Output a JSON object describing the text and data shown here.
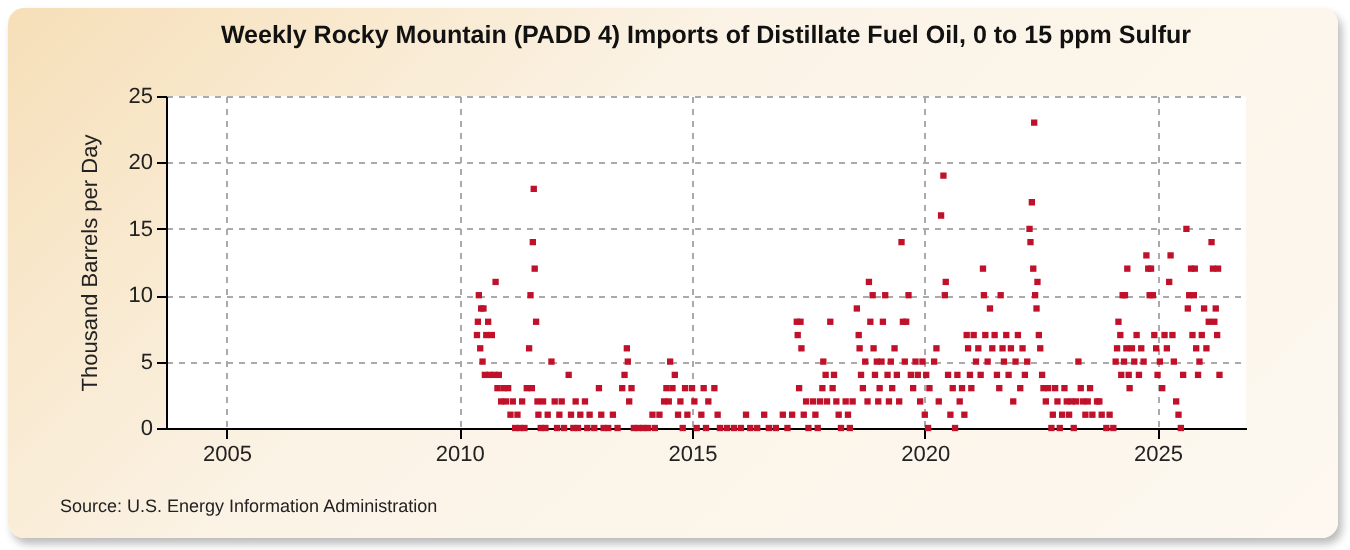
{
  "chart_data": {
    "type": "scatter",
    "title": "Weekly Rocky Mountain (PADD 4) Imports of Distillate Fuel Oil, 0 to 15 ppm Sulfur",
    "ylabel": "Thousand Barrels per Day",
    "annotations": [
      "Source: U.S. Energy Information Administration"
    ],
    "xlim": [
      2003.7,
      2026.9
    ],
    "xticks": [
      2005,
      2010,
      2015,
      2020,
      2025
    ],
    "ylim": [
      0,
      25
    ],
    "yticks": [
      0,
      5,
      10,
      15,
      20,
      25
    ],
    "grid": true,
    "marker": "square",
    "legend": false,
    "series": [
      {
        "color": "#c0102a",
        "x": [
          2010.38,
          2010.4,
          2010.42,
          2010.45,
          2010.47,
          2010.5,
          2010.52,
          2010.55,
          2010.58,
          2010.62,
          2010.65,
          2010.7,
          2010.75,
          2010.78,
          2010.82,
          2010.85,
          2010.9,
          2010.95,
          2011.0,
          2011.05,
          2011.1,
          2011.15,
          2011.2,
          2011.25,
          2011.3,
          2011.35,
          2011.4,
          2011.45,
          2011.5,
          2011.53,
          2011.56,
          2011.58,
          2011.6,
          2011.62,
          2011.65,
          2011.68,
          2011.7,
          2011.75,
          2011.8,
          2011.85,
          2011.9,
          2011.98,
          2012.05,
          2012.1,
          2012.15,
          2012.2,
          2012.25,
          2012.35,
          2012.4,
          2012.45,
          2012.5,
          2012.55,
          2012.6,
          2012.7,
          2012.75,
          2012.8,
          2012.9,
          2013.0,
          2013.05,
          2013.1,
          2013.2,
          2013.3,
          2013.4,
          2013.5,
          2013.55,
          2013.6,
          2013.62,
          2013.65,
          2013.7,
          2013.75,
          2013.85,
          2013.95,
          2014.05,
          2014.15,
          2014.2,
          2014.3,
          2014.4,
          2014.45,
          2014.5,
          2014.53,
          2014.58,
          2014.63,
          2014.7,
          2014.75,
          2014.8,
          2014.85,
          2014.9,
          2015.0,
          2015.05,
          2015.1,
          2015.2,
          2015.25,
          2015.3,
          2015.35,
          2015.48,
          2015.55,
          2015.6,
          2015.75,
          2015.9,
          2016.05,
          2016.16,
          2016.25,
          2016.4,
          2016.55,
          2016.65,
          2016.8,
          2016.95,
          2017.05,
          2017.15,
          2017.25,
          2017.27,
          2017.3,
          2017.33,
          2017.35,
          2017.4,
          2017.45,
          2017.5,
          2017.6,
          2017.65,
          2017.7,
          2017.75,
          2017.8,
          2017.82,
          2017.87,
          2017.9,
          2017.97,
          2018.02,
          2018.05,
          2018.1,
          2018.15,
          2018.2,
          2018.3,
          2018.35,
          2018.39,
          2018.45,
          2018.54,
          2018.58,
          2018.6,
          2018.63,
          2018.67,
          2018.72,
          2018.77,
          2018.8,
          2018.83,
          2018.88,
          2018.9,
          2018.93,
          2018.97,
          2019.0,
          2019.03,
          2019.07,
          2019.1,
          2019.15,
          2019.2,
          2019.23,
          2019.27,
          2019.3,
          2019.35,
          2019.4,
          2019.45,
          2019.5,
          2019.53,
          2019.57,
          2019.6,
          2019.65,
          2019.7,
          2019.75,
          2019.8,
          2019.85,
          2019.9,
          2019.95,
          2020.0,
          2020.03,
          2020.07,
          2020.1,
          2020.2,
          2020.25,
          2020.3,
          2020.35,
          2020.4,
          2020.43,
          2020.45,
          2020.5,
          2020.55,
          2020.6,
          2020.65,
          2020.7,
          2020.75,
          2020.8,
          2020.85,
          2020.9,
          2020.93,
          2020.97,
          2021.0,
          2021.05,
          2021.1,
          2021.15,
          2021.2,
          2021.25,
          2021.27,
          2021.3,
          2021.35,
          2021.4,
          2021.45,
          2021.5,
          2021.55,
          2021.6,
          2021.63,
          2021.67,
          2021.7,
          2021.75,
          2021.8,
          2021.85,
          2021.9,
          2021.95,
          2022.0,
          2022.05,
          2022.1,
          2022.15,
          2022.2,
          2022.25,
          2022.27,
          2022.3,
          2022.33,
          2022.35,
          2022.37,
          2022.4,
          2022.42,
          2022.45,
          2022.48,
          2022.52,
          2022.55,
          2022.6,
          2022.65,
          2022.72,
          2022.75,
          2022.8,
          2022.85,
          2022.9,
          2022.95,
          2023.0,
          2023.05,
          2023.1,
          2023.15,
          2023.2,
          2023.25,
          2023.3,
          2023.35,
          2023.4,
          2023.45,
          2023.5,
          2023.55,
          2023.6,
          2023.7,
          2023.75,
          2023.8,
          2023.9,
          2023.97,
          2024.05,
          2024.1,
          2024.13,
          2024.16,
          2024.2,
          2024.22,
          2024.25,
          2024.28,
          2024.3,
          2024.33,
          2024.35,
          2024.38,
          2024.4,
          2024.45,
          2024.5,
          2024.55,
          2024.6,
          2024.65,
          2024.7,
          2024.76,
          2024.8,
          2024.83,
          2024.86,
          2024.9,
          2024.93,
          2024.97,
          2025.0,
          2025.05,
          2025.1,
          2025.15,
          2025.2,
          2025.25,
          2025.28,
          2025.32,
          2025.35,
          2025.4,
          2025.45,
          2025.5,
          2025.55,
          2025.62,
          2025.65,
          2025.68,
          2025.72,
          2025.75,
          2025.78,
          2025.8,
          2025.83,
          2025.87,
          2025.9,
          2025.95,
          2026.0,
          2026.05,
          2026.1,
          2026.16,
          2026.19,
          2026.22,
          2026.25,
          2026.28,
          2026.3,
          2026.33
        ],
        "values": [
          7,
          8,
          10,
          6,
          9,
          5,
          9,
          4,
          7,
          8,
          4,
          7,
          4,
          11,
          3,
          4,
          2,
          3,
          2,
          3,
          1,
          2,
          0,
          1,
          0,
          2,
          0,
          3,
          6,
          10,
          3,
          14,
          18,
          12,
          8,
          2,
          1,
          0,
          2,
          0,
          1,
          5,
          2,
          0,
          1,
          2,
          0,
          4,
          1,
          0,
          2,
          0,
          1,
          2,
          0,
          1,
          0,
          3,
          1,
          0,
          0,
          1,
          0,
          3,
          4,
          6,
          5,
          2,
          3,
          0,
          0,
          0,
          0,
          1,
          0,
          1,
          2,
          3,
          2,
          5,
          3,
          4,
          1,
          2,
          0,
          3,
          1,
          3,
          2,
          0,
          1,
          3,
          0,
          2,
          3,
          1,
          0,
          0,
          0,
          0,
          1,
          0,
          0,
          1,
          0,
          0,
          1,
          0,
          1,
          8,
          7,
          3,
          8,
          6,
          1,
          2,
          0,
          2,
          1,
          0,
          2,
          3,
          5,
          4,
          2,
          8,
          3,
          4,
          2,
          1,
          0,
          2,
          1,
          0,
          2,
          9,
          7,
          6,
          4,
          3,
          5,
          2,
          11,
          8,
          10,
          6,
          4,
          5,
          2,
          3,
          5,
          8,
          10,
          4,
          2,
          5,
          3,
          6,
          4,
          2,
          14,
          8,
          5,
          8,
          10,
          4,
          3,
          5,
          4,
          2,
          5,
          1,
          4,
          0,
          3,
          5,
          6,
          2,
          16,
          19,
          10,
          11,
          4,
          1,
          3,
          0,
          4,
          2,
          3,
          1,
          7,
          6,
          4,
          3,
          7,
          5,
          6,
          4,
          12,
          10,
          7,
          5,
          9,
          6,
          7,
          4,
          3,
          10,
          6,
          5,
          7,
          4,
          6,
          2,
          5,
          7,
          3,
          6,
          4,
          5,
          15,
          14,
          17,
          12,
          23,
          10,
          9,
          11,
          7,
          6,
          4,
          3,
          2,
          3,
          0,
          1,
          3,
          2,
          0,
          1,
          3,
          2,
          1,
          2,
          0,
          2,
          5,
          3,
          2,
          1,
          2,
          3,
          1,
          2,
          2,
          1,
          0,
          1,
          0,
          5,
          6,
          8,
          7,
          4,
          10,
          5,
          10,
          6,
          12,
          4,
          3,
          6,
          5,
          7,
          4,
          6,
          5,
          13,
          12,
          10,
          12,
          10,
          7,
          6,
          4,
          5,
          3,
          7,
          6,
          11,
          13,
          7,
          5,
          2,
          1,
          0,
          4,
          15,
          9,
          10,
          12,
          7,
          10,
          12,
          6,
          4,
          5,
          7,
          9,
          6,
          8,
          14,
          12,
          8,
          9,
          7,
          12,
          4
        ]
      }
    ]
  }
}
